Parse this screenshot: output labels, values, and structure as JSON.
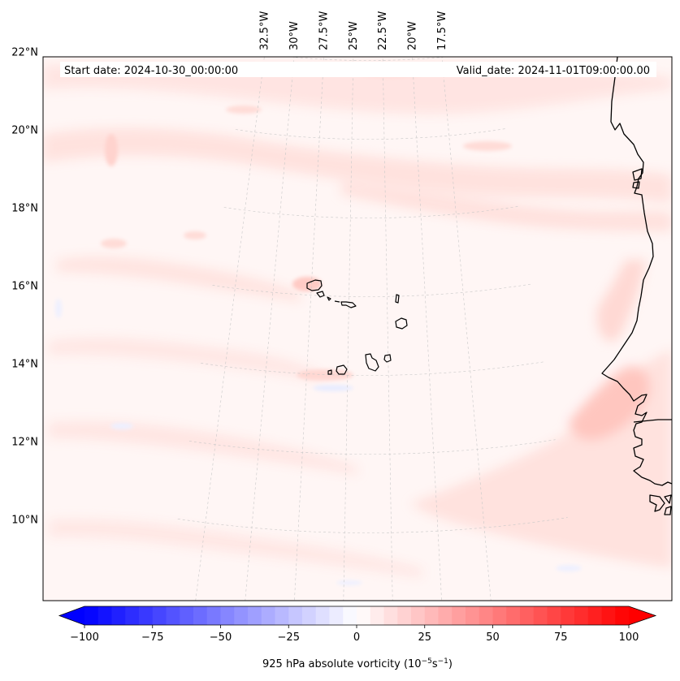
{
  "map": {
    "projection": "conic",
    "extent": {
      "lon_min": -33.0,
      "lon_max": -14.0,
      "lat_min": 8.9,
      "lat_max": 22.8
    },
    "lon_ticks": [
      {
        "lon": -32.5,
        "label": "32.5°W"
      },
      {
        "lon": -30.0,
        "label": "30°W"
      },
      {
        "lon": -27.5,
        "label": "27.5°W"
      },
      {
        "lon": -25.0,
        "label": "25°W"
      },
      {
        "lon": -22.5,
        "label": "22.5°W"
      },
      {
        "lon": -20.0,
        "label": "20°W"
      },
      {
        "lon": -17.5,
        "label": "17.5°W"
      }
    ],
    "lat_ticks": [
      {
        "lat": 22,
        "label": "22°N"
      },
      {
        "lat": 20,
        "label": "20°N"
      },
      {
        "lat": 18,
        "label": "18°N"
      },
      {
        "lat": 16,
        "label": "16°N"
      },
      {
        "lat": 14,
        "label": "14°N"
      },
      {
        "lat": 12,
        "label": "12°N"
      },
      {
        "lat": 10,
        "label": "10°N"
      }
    ],
    "gridlines": true,
    "field": "925 hPa absolute vorticity",
    "features": [
      "African coastline (Western Sahara, Mauritania, Senegal, Gambia, Guinea-Bissau)",
      "Cape Verde islands"
    ]
  },
  "info": {
    "start_date": "Start date: 2024-10-30_00:00:00",
    "valid_date": "Valid_date: 2024-11-01T09:00:00.00"
  },
  "colorbar": {
    "label_main": "925 hPa absolute vorticity (10",
    "label_exp1": "−5",
    "label_mid": "s",
    "label_exp2": "−1",
    "label_end": ")",
    "min": -100,
    "max": 100,
    "levels": 41,
    "extend": "both",
    "colormap": "bwr",
    "ticks": [
      {
        "value": -100,
        "label": "−100"
      },
      {
        "value": -75,
        "label": "−75"
      },
      {
        "value": -50,
        "label": "−50"
      },
      {
        "value": -25,
        "label": "−25"
      },
      {
        "value": 0,
        "label": "0"
      },
      {
        "value": 25,
        "label": "25"
      },
      {
        "value": 50,
        "label": "50"
      },
      {
        "value": 75,
        "label": "75"
      },
      {
        "value": 100,
        "label": "100"
      }
    ]
  },
  "colors": {
    "ocean_background": "#fff6f5",
    "coastline": "#000000",
    "gridline": "#c8c8c8",
    "positive_max": "#ff0000",
    "negative_max": "#0000ff"
  }
}
